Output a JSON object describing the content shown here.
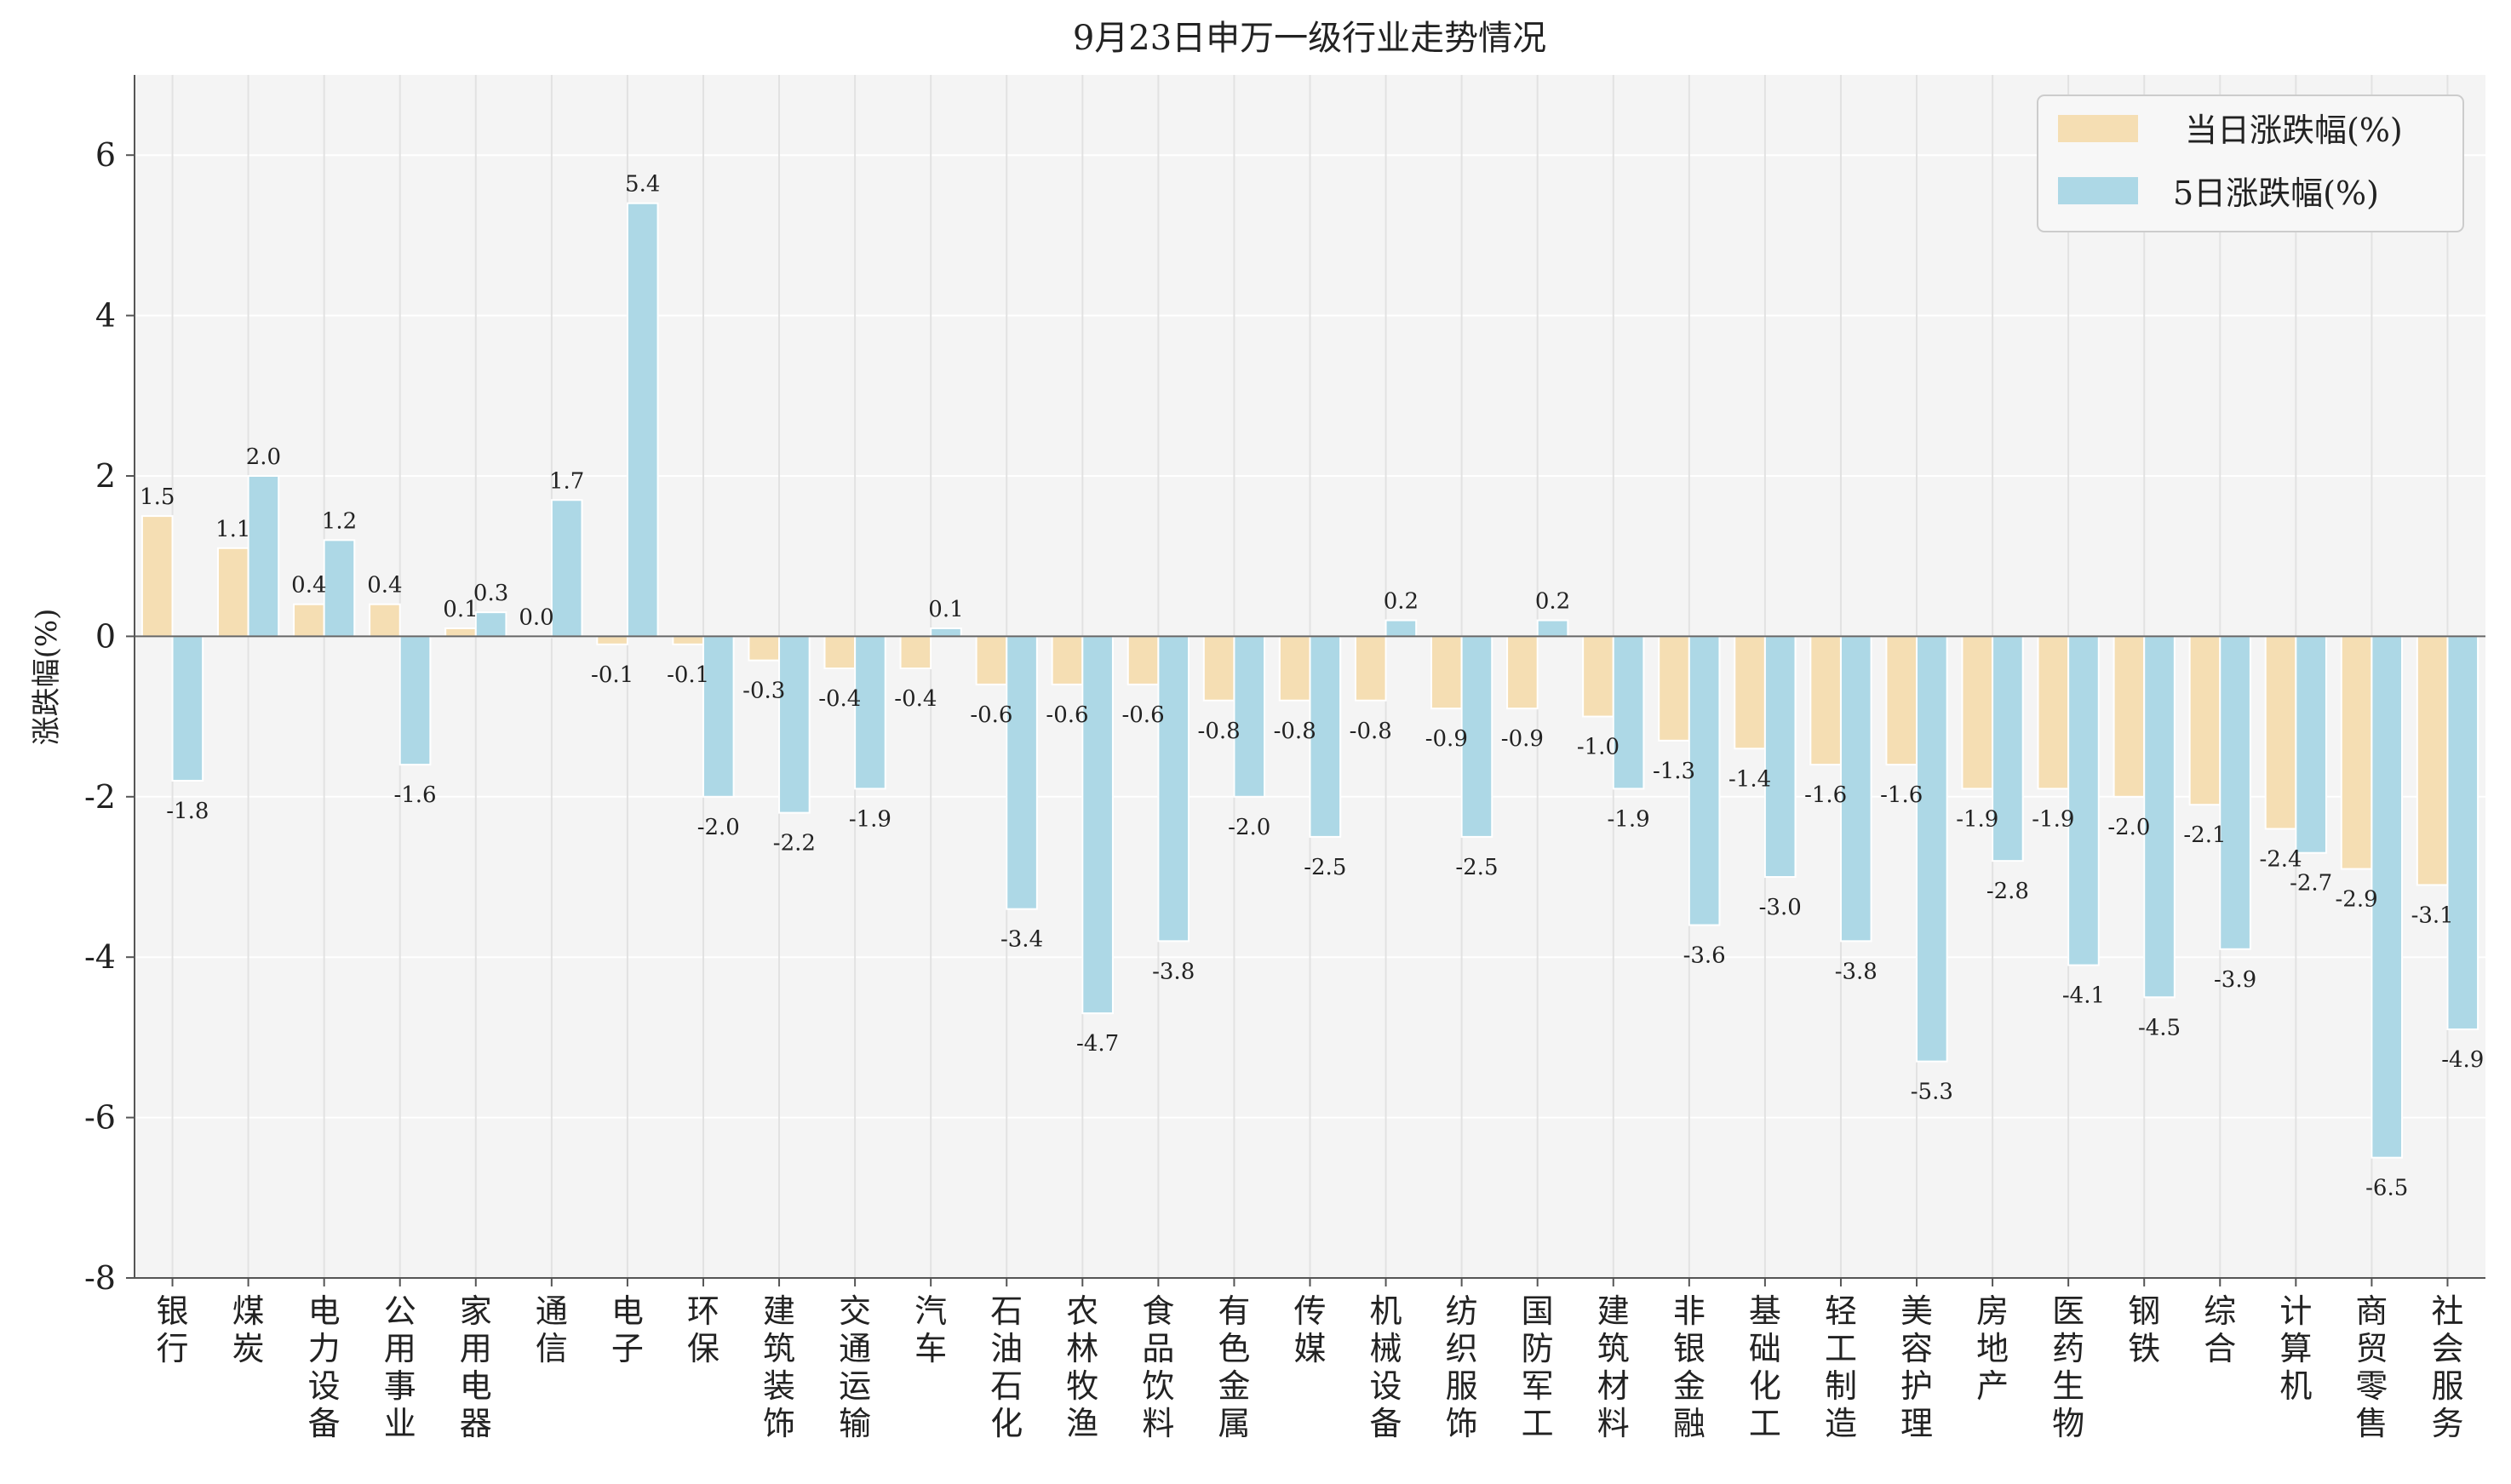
{
  "chart_data": {
    "type": "bar",
    "title": "9月23日申万一级行业走势情况",
    "xlabel": "",
    "ylabel": "涨跌幅(%)",
    "ylim": [
      -8,
      7
    ],
    "yticks": [
      -8,
      -6,
      -4,
      -2,
      0,
      2,
      4,
      6
    ],
    "grid": true,
    "legend_position": "top-right",
    "categories": [
      "银行",
      "煤炭",
      "电力设备",
      "公用事业",
      "家用电器",
      "通信",
      "电子",
      "环保",
      "建筑装饰",
      "交通运输",
      "汽车",
      "石油石化",
      "农林牧渔",
      "食品饮料",
      "有色金属",
      "传媒",
      "机械设备",
      "纺织服饰",
      "国防军工",
      "建筑材料",
      "非银金融",
      "基础化工",
      "轻工制造",
      "美容护理",
      "房地产",
      "医药生物",
      "钢铁",
      "综合",
      "计算机",
      "商贸零售",
      "社会服务"
    ],
    "series": [
      {
        "name": "当日涨跌幅(%)",
        "color": "#f5deb3",
        "values": [
          1.5,
          1.1,
          0.4,
          0.4,
          0.1,
          0.0,
          -0.1,
          -0.1,
          -0.3,
          -0.4,
          -0.4,
          -0.6,
          -0.6,
          -0.6,
          -0.8,
          -0.8,
          -0.8,
          -0.9,
          -0.9,
          -1.0,
          -1.3,
          -1.4,
          -1.6,
          -1.6,
          -1.9,
          -1.9,
          -2.0,
          -2.1,
          -2.4,
          -2.9,
          -3.1
        ]
      },
      {
        "name": "5日涨跌幅(%)",
        "color": "#add8e6",
        "values": [
          -1.8,
          2.0,
          1.2,
          -1.6,
          0.3,
          1.7,
          5.4,
          -2.0,
          -2.2,
          -1.9,
          0.1,
          -3.4,
          -4.7,
          -3.8,
          -2.0,
          -2.5,
          0.2,
          -2.5,
          0.2,
          -1.9,
          -3.6,
          -3.0,
          -3.8,
          -5.3,
          -2.8,
          -4.1,
          -4.5,
          -3.9,
          -2.7,
          -6.5,
          -4.9
        ]
      }
    ]
  }
}
